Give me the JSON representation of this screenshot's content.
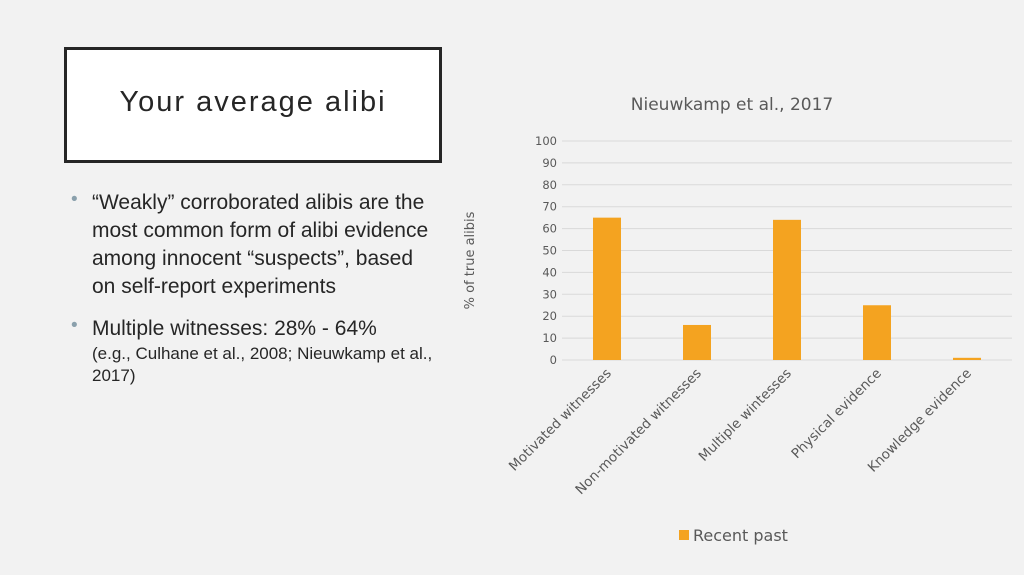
{
  "slide": {
    "title": "Your average alibi",
    "bullets": [
      {
        "main": "“Weakly” corroborated alibis are the most common form of alibi evidence among innocent “suspects”, based on self-report experiments"
      },
      {
        "main": "Multiple witnesses: 28% - 64%",
        "sub": "(e.g., Culhane et al., 2008; Nieuwkamp et al., 2017)"
      }
    ]
  },
  "chart_data": {
    "type": "bar",
    "title": "Nieuwkamp et al., 2017",
    "xlabel": "",
    "ylabel": "% of true alibis",
    "categories": [
      "Motivated witnesses",
      "Non-motivated witnesses",
      "Multiple wintesses",
      "Physical evidence",
      "Knowledge evidence"
    ],
    "series": [
      {
        "name": "Recent past",
        "values": [
          65,
          16,
          64,
          25,
          1
        ],
        "color": "#f4a320"
      }
    ],
    "ylim": [
      0,
      100
    ],
    "yticks": [
      0,
      10,
      20,
      30,
      40,
      50,
      60,
      70,
      80,
      90,
      100
    ],
    "grid": true,
    "legend": "bottom"
  }
}
